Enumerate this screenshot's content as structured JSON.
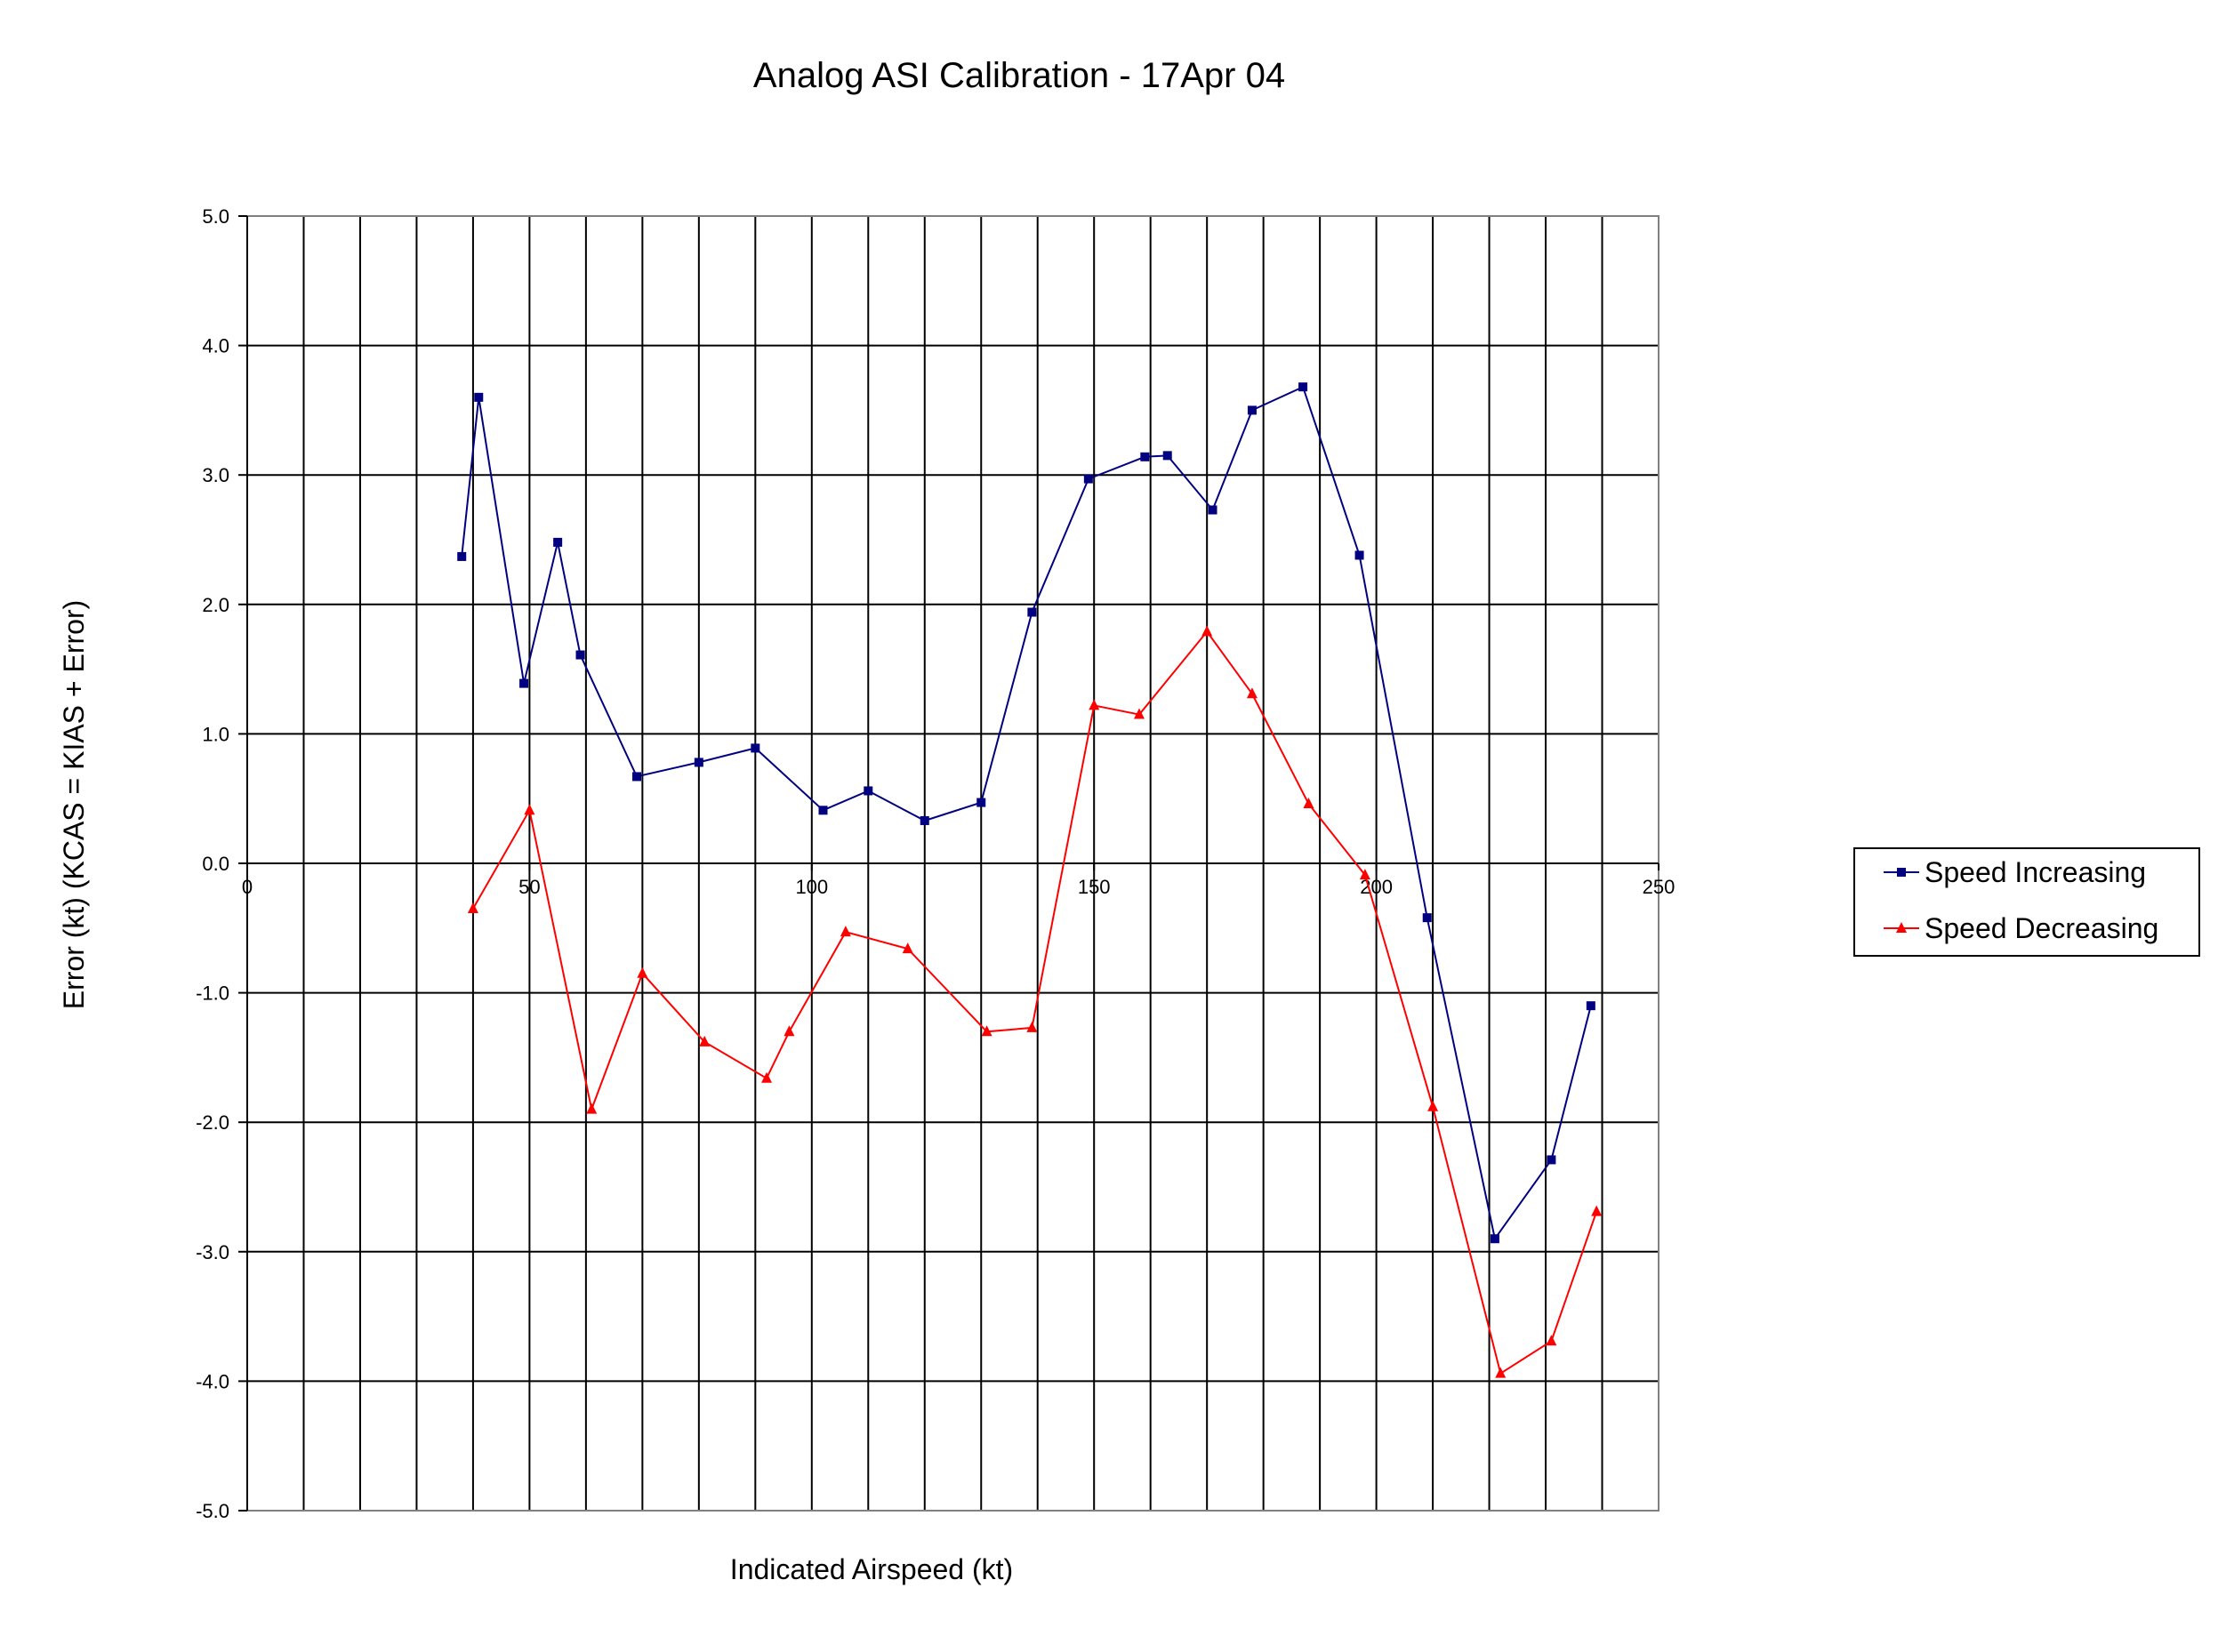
{
  "chart_data": {
    "type": "line",
    "title": "Analog ASI Calibration - 17Apr 04",
    "xlabel": "Indicated Airspeed (kt)",
    "ylabel": "Error (kt) (KCAS = KIAS + Error)",
    "xlim": [
      0,
      250
    ],
    "ylim": [
      -5,
      5
    ],
    "x_ticks": [
      0,
      50,
      100,
      150,
      200,
      250
    ],
    "x_tick_labels": [
      "0",
      "50",
      "100",
      "150",
      "200",
      "250"
    ],
    "x_minor_step": 10,
    "y_ticks": [
      5,
      4,
      3,
      2,
      1,
      0,
      -1,
      -2,
      -3,
      -4,
      -5
    ],
    "y_tick_labels": [
      "5.0",
      "4.0",
      "3.0",
      "2.0",
      "1.0",
      "0.0",
      "-1.0",
      "-2.0",
      "-3.0",
      "-4.0",
      "-5.0"
    ],
    "grid": true,
    "legend_position": "right",
    "series": [
      {
        "name": "Speed Increasing",
        "color": "#000080",
        "marker": "square",
        "x": [
          38,
          41,
          49,
          55,
          59,
          69,
          80,
          90,
          102,
          110,
          120,
          130,
          139,
          149,
          159,
          163,
          171,
          178,
          187,
          197,
          209,
          221,
          231,
          238
        ],
        "y": [
          2.37,
          3.6,
          1.39,
          2.48,
          1.61,
          0.67,
          0.78,
          0.89,
          0.41,
          0.56,
          0.33,
          0.47,
          1.94,
          2.97,
          3.14,
          3.15,
          2.73,
          3.5,
          3.68,
          2.38,
          -0.42,
          -2.9,
          -2.29,
          -1.1
        ]
      },
      {
        "name": "Speed Decreasing",
        "color": "#ff0000",
        "marker": "triangle",
        "x": [
          40,
          50,
          61,
          70,
          81,
          92,
          96,
          106,
          117,
          131,
          139,
          150,
          158,
          170,
          178,
          188,
          198,
          210,
          222,
          231,
          239
        ],
        "y": [
          -0.35,
          0.41,
          -1.9,
          -0.85,
          -1.38,
          -1.66,
          -1.3,
          -0.53,
          -0.66,
          -1.3,
          -1.27,
          1.22,
          1.15,
          1.79,
          1.31,
          0.46,
          -0.09,
          -1.88,
          -3.94,
          -3.69,
          -2.69
        ]
      }
    ]
  }
}
